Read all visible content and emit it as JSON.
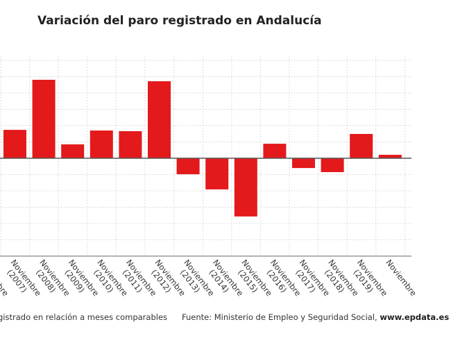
{
  "title": "Variación del paro registrado en Andalucía",
  "chart_data": {
    "type": "bar",
    "title": "Variación del paro registrado en Andalucía",
    "categories": [
      "Noviembre (2007)",
      "Noviembre (2008)",
      "Noviembre (2009)",
      "Noviembre (2010)",
      "Noviembre (2011)",
      "Noviembre (2012)",
      "Noviembre (2013)",
      "Noviembre (2014)",
      "Noviembre (2015)",
      "Noviembre (2016)",
      "Noviembre (2017)",
      "Noviembre (2018)",
      "Noviembre (2019)",
      "Noviembre"
    ],
    "values": [
      1.74,
      4.81,
      0.85,
      1.7,
      1.66,
      4.72,
      -0.98,
      -1.91,
      -3.57,
      0.89,
      -0.6,
      -0.85,
      1.49,
      0.21
    ],
    "ylim": [
      -6,
      6
    ],
    "grid": true,
    "bar_color": "#e3191c",
    "xlabel": "",
    "ylabel": ""
  },
  "footer": {
    "left": "gistrado en relación a meses comparables",
    "source": "Fuente: Ministerio de Empleo y Seguridad Social, ",
    "site": "www.epdata.es"
  }
}
